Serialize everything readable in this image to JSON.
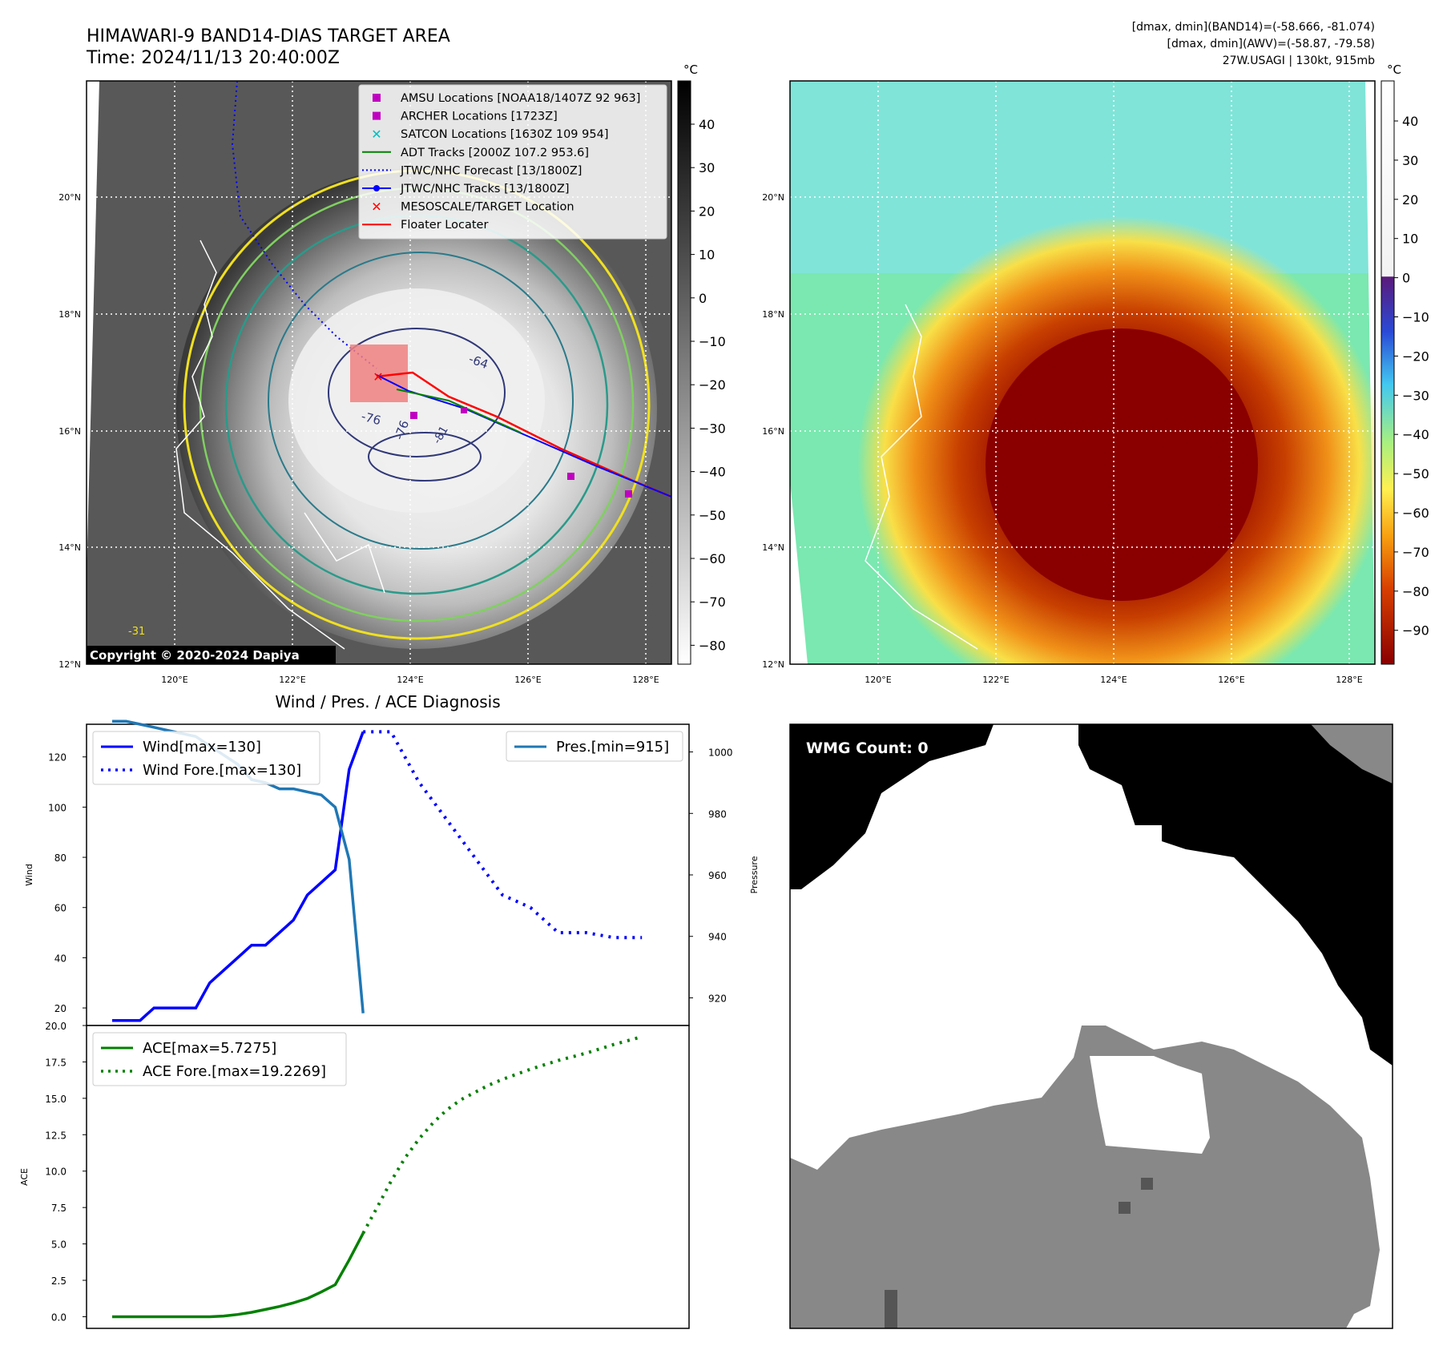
{
  "header": {
    "title_line1": "HIMAWARI-9 BAND14-DIAS TARGET AREA",
    "title_line2": "Time: 2024/11/13 20:40:00Z",
    "stats_line1": "[dmax, dmin](BAND14)=(-58.666, -81.074)",
    "stats_line2": "[dmax, dmin](AWV)=(-58.87, -79.58)",
    "stats_line3": "27W.USAGI | 130kt, 915mb"
  },
  "map": {
    "lat_labels": [
      "20°N",
      "18°N",
      "16°N",
      "14°N",
      "12°N"
    ],
    "lon_labels": [
      "120°E",
      "122°E",
      "124°E",
      "126°E",
      "128°E"
    ],
    "copyright": "Copyright © 2020-2024 Dapiya",
    "contour_labels": [
      "-64",
      "-76",
      "-76",
      "-81",
      "-31"
    ],
    "legend": [
      {
        "label": "AMSU Locations [NOAA18/1407Z 92 963]",
        "color": "#c000c0",
        "marker": "square"
      },
      {
        "label": "ARCHER Locations [1723Z]",
        "color": "#c000c0",
        "marker": "square"
      },
      {
        "label": "SATCON Locations [1630Z 109 954]",
        "color": "#00bfbf",
        "marker": "x"
      },
      {
        "label": "ADT Tracks [2000Z 107.2 953.6]",
        "color": "#008000",
        "marker": "line"
      },
      {
        "label": "JTWC/NHC Forecast [13/1800Z]",
        "color": "#0000ff",
        "marker": "dotted"
      },
      {
        "label": "JTWC/NHC Tracks [13/1800Z]",
        "color": "#0000ff",
        "marker": "line-dot"
      },
      {
        "label": "MESOSCALE/TARGET Location",
        "color": "#ff0000",
        "marker": "x"
      },
      {
        "label": "Floater Locater",
        "color": "#ff0000",
        "marker": "line"
      }
    ]
  },
  "colorbar_ir": {
    "unit": "°C",
    "ticks": [
      "40",
      "30",
      "20",
      "10",
      "0",
      "−10",
      "−20",
      "−30",
      "−40",
      "−50",
      "−60",
      "−70",
      "−80"
    ]
  },
  "colorbar_wv": {
    "unit": "°C",
    "ticks": [
      "40",
      "30",
      "20",
      "10",
      "0",
      "−10",
      "−20",
      "−30",
      "−40",
      "−50",
      "−60",
      "−70",
      "−80",
      "−90"
    ]
  },
  "wmg": {
    "label": "WMG Count: 0"
  },
  "chart_data": [
    {
      "type": "line",
      "title": "Wind / Pres. / ACE Diagnosis",
      "xlabel": "",
      "ylabel": "Wind",
      "ylabel2": "Pressure",
      "ylim": [
        13,
        133
      ],
      "ylim2": [
        911,
        1009
      ],
      "yticks": [
        "20",
        "40",
        "60",
        "80",
        "100",
        "120"
      ],
      "yticks2": [
        "920",
        "940",
        "960",
        "980",
        "1000"
      ],
      "legend_left": [
        "Wind[max=130]",
        "Wind Fore.[max=130]"
      ],
      "legend_right": [
        "Pres.[min=915]"
      ],
      "series": [
        {
          "name": "Wind[max=130]",
          "axis": "left",
          "style": "solid",
          "color": "#0000ff",
          "x": [
            0,
            1,
            2,
            3,
            4,
            5,
            6,
            7,
            8,
            9,
            10,
            11,
            12,
            13,
            14,
            15,
            16,
            17,
            18
          ],
          "values": [
            15,
            15,
            15,
            20,
            20,
            20,
            20,
            30,
            35,
            40,
            45,
            45,
            50,
            55,
            65,
            70,
            75,
            115,
            130
          ]
        },
        {
          "name": "Wind Fore.[max=130]",
          "axis": "left",
          "style": "dotted",
          "color": "#0000ff",
          "x": [
            18,
            20,
            22,
            24,
            26,
            28,
            30,
            32,
            34,
            36,
            38
          ],
          "values": [
            130,
            130,
            110,
            95,
            80,
            65,
            60,
            50,
            50,
            48,
            48
          ]
        },
        {
          "name": "Pres.[min=915]",
          "axis": "right",
          "style": "solid",
          "color": "#1f77b4",
          "x": [
            0,
            1,
            2,
            3,
            4,
            5,
            6,
            7,
            8,
            9,
            10,
            11,
            12,
            13,
            14,
            15,
            16,
            17,
            18
          ],
          "values": [
            1010,
            1010,
            1009,
            1008,
            1007,
            1006,
            1005,
            1002,
            999,
            996,
            991,
            990,
            988,
            988,
            987,
            986,
            982,
            965,
            915
          ]
        }
      ]
    },
    {
      "type": "line",
      "title": "",
      "xlabel": "",
      "ylabel": "ACE",
      "ylim": [
        -0.8,
        20.0
      ],
      "yticks": [
        "0.0",
        "2.5",
        "5.0",
        "7.5",
        "10.0",
        "12.5",
        "15.0",
        "17.5",
        "20.0"
      ],
      "legend": [
        "ACE[max=5.7275]",
        "ACE Fore.[max=19.2269]"
      ],
      "series": [
        {
          "name": "ACE[max=5.7275]",
          "style": "solid",
          "color": "#008000",
          "x": [
            0,
            2,
            4,
            6,
            7,
            8,
            9,
            10,
            11,
            12,
            13,
            14,
            15,
            16,
            17,
            18
          ],
          "values": [
            0,
            0,
            0,
            0,
            0,
            0.05,
            0.15,
            0.3,
            0.5,
            0.7,
            0.95,
            1.25,
            1.7,
            2.2,
            3.9,
            5.73
          ]
        },
        {
          "name": "ACE Fore.[max=19.2269]",
          "style": "dotted",
          "color": "#008000",
          "x": [
            18,
            19,
            20,
            21,
            22,
            23,
            24,
            25,
            26,
            27,
            28,
            30,
            32,
            34,
            36,
            38
          ],
          "values": [
            5.73,
            7.5,
            9.3,
            10.9,
            12.2,
            13.3,
            14.2,
            14.9,
            15.4,
            15.9,
            16.3,
            17.0,
            17.6,
            18.1,
            18.7,
            19.23
          ]
        }
      ]
    }
  ]
}
